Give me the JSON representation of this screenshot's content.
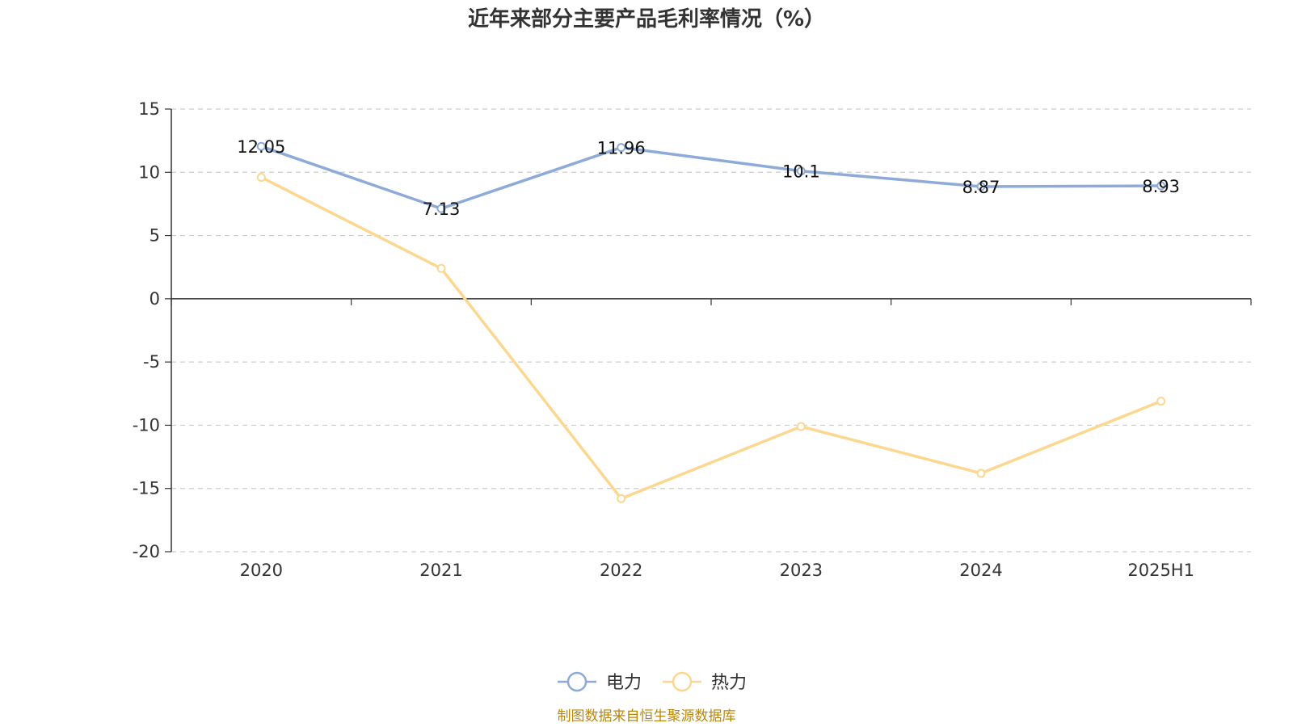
{
  "chart_data": {
    "type": "line",
    "title": "近年来部分主要产品毛利率情况（%）",
    "categories": [
      "2020",
      "2021",
      "2022",
      "2023",
      "2024",
      "2025H1"
    ],
    "series": [
      {
        "name": "电力",
        "color": "#8eaad8",
        "values": [
          12.05,
          7.13,
          11.96,
          10.1,
          8.87,
          8.93
        ],
        "show_labels": true
      },
      {
        "name": "热力",
        "color": "#fbd78f",
        "values": [
          9.6,
          2.4,
          -15.8,
          -10.1,
          -13.8,
          -8.1
        ],
        "show_labels": false
      }
    ],
    "ylim": [
      -20,
      15
    ],
    "yticks": [
      15,
      10,
      5,
      0,
      -5,
      -10,
      -15,
      -20
    ],
    "xlabel": "",
    "ylabel": "",
    "grid": true,
    "legend_position": "bottom-center"
  },
  "footer": {
    "source": "制图数据来自恒生聚源数据库"
  }
}
